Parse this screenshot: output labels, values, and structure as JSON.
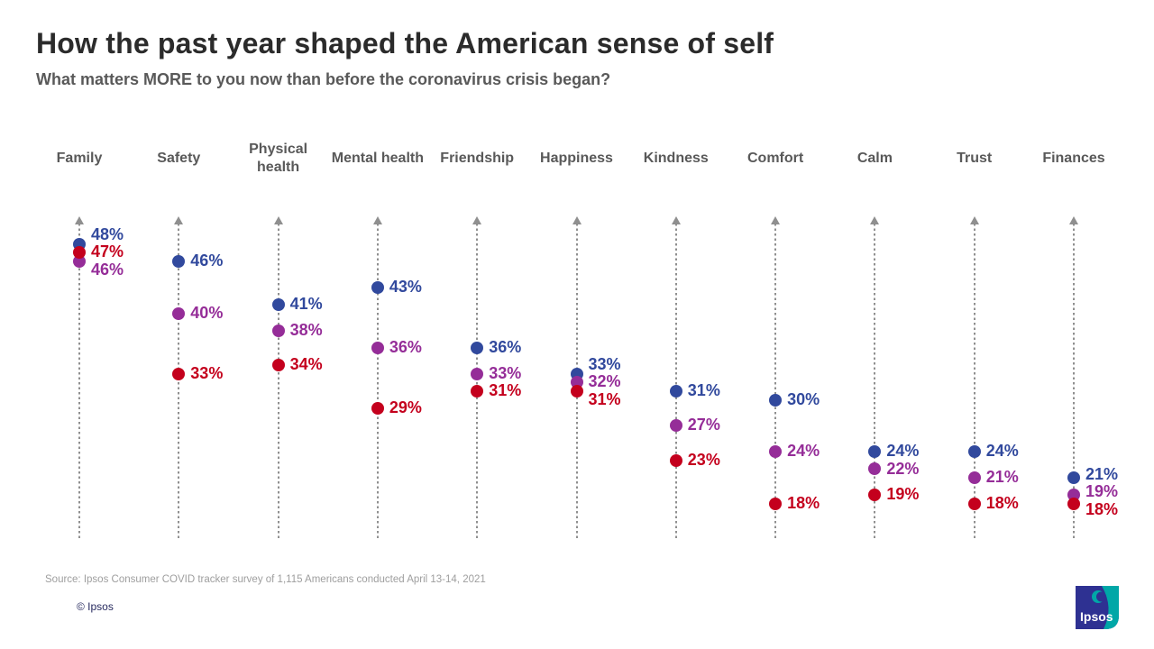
{
  "title": "How the past year shaped the American sense of self",
  "subtitle": "What matters MORE to you now than before the coronavirus crisis began?",
  "source": "Source: Ipsos Consumer COVID tracker survey of 1,115 Americans conducted April 13-14, 2021",
  "footer": {
    "copyright": "© Ipsos",
    "logo_text": "Ipsos"
  },
  "colors": {
    "blue": "#31499d",
    "purple": "#952d98",
    "red": "#c4001d",
    "axis_line": "#8f8f8f",
    "title_text": "#2b2b2b",
    "subtitle_text": "#595959",
    "header_text": "#595959",
    "source_text": "#9e9e9e",
    "copyright_text": "#26295e",
    "logo_navy": "#2e3192",
    "logo_teal": "#00a7a7"
  },
  "chart_data": {
    "type": "scatter",
    "subtype": "dot-plot-vertical-lollipop",
    "categories": [
      "Family",
      "Safety",
      "Physical health",
      "Mental health",
      "Friendship",
      "Happiness",
      "Kindness",
      "Comfort",
      "Calm",
      "Trust",
      "Finances"
    ],
    "series": [
      {
        "name": "blue",
        "color": "#31499d",
        "values": [
          48,
          46,
          41,
          43,
          36,
          33,
          31,
          30,
          24,
          24,
          21
        ]
      },
      {
        "name": "purple",
        "color": "#952d98",
        "values": [
          46,
          40,
          38,
          36,
          33,
          32,
          27,
          24,
          22,
          21,
          19
        ]
      },
      {
        "name": "red",
        "color": "#c4001d",
        "values": [
          47,
          33,
          34,
          29,
          31,
          31,
          23,
          18,
          19,
          18,
          18
        ]
      }
    ],
    "value_suffix": "%",
    "value_range_shown": [
      18,
      48
    ],
    "legend": "none",
    "grid": "off",
    "axis_style": "dotted vertical line with up arrow per category"
  }
}
